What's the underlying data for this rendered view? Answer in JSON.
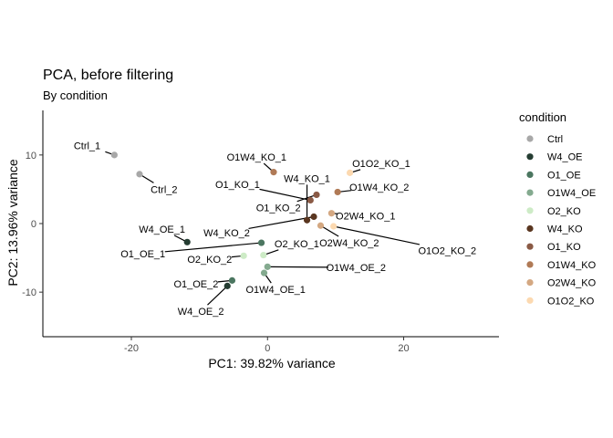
{
  "chart_data": {
    "type": "scatter",
    "title": "PCA, before filtering",
    "subtitle": "By condition",
    "xlabel": "PC1: 39.82% variance",
    "ylabel": "PC2: 13.96% variance",
    "xlim": [
      -33,
      34
    ],
    "ylim": [
      -16.5,
      16.5
    ],
    "xticks": [
      -20,
      0,
      20
    ],
    "yticks": [
      -10,
      0,
      10
    ],
    "tick_labels": {
      "x": [
        "-20",
        "0",
        "20"
      ],
      "y": [
        "-10",
        "0",
        "10"
      ]
    },
    "grid": false,
    "legend": {
      "title": "condition",
      "position": "right",
      "entries": [
        {
          "label": "Ctrl",
          "color": "#A8A8A8"
        },
        {
          "label": "W4_OE",
          "color": "#253D32"
        },
        {
          "label": "O1_OE",
          "color": "#4B7660"
        },
        {
          "label": "O1W4_OE",
          "color": "#84AA8F"
        },
        {
          "label": "O2_KO",
          "color": "#CDEBC6"
        },
        {
          "label": "W4_KO",
          "color": "#5A3620"
        },
        {
          "label": "O1_KO",
          "color": "#8A5A45"
        },
        {
          "label": "O1W4_KO",
          "color": "#B07A56"
        },
        {
          "label": "O2W4_KO",
          "color": "#D4A882"
        },
        {
          "label": "O1O2_KO",
          "color": "#FCD9B0"
        }
      ]
    },
    "points": [
      {
        "label": "Ctrl_1",
        "condition": "Ctrl",
        "x": -22.5,
        "y": 10.0,
        "lx": -26.5,
        "ly": 11.4
      },
      {
        "label": "Ctrl_2",
        "condition": "Ctrl",
        "x": -18.8,
        "y": 7.2,
        "lx": -15.2,
        "ly": 5.0
      },
      {
        "label": "W4_OE_1",
        "condition": "W4_OE",
        "x": -11.8,
        "y": -2.7,
        "lx": -15.5,
        "ly": -0.8
      },
      {
        "label": "W4_OE_2",
        "condition": "W4_OE",
        "x": -5.9,
        "y": -9.1,
        "lx": -9.8,
        "ly": -12.8
      },
      {
        "label": "O1_OE_1",
        "condition": "O1_OE",
        "x": -0.9,
        "y": -2.8,
        "lx": -18.3,
        "ly": -4.4
      },
      {
        "label": "O1_OE_2",
        "condition": "O1_OE",
        "x": -5.2,
        "y": -8.3,
        "lx": -10.5,
        "ly": -8.8
      },
      {
        "label": "O1W4_OE_1",
        "condition": "O1W4_OE",
        "x": -0.5,
        "y": -7.2,
        "lx": 1.2,
        "ly": -9.6
      },
      {
        "label": "O1W4_OE_2",
        "condition": "O1W4_OE",
        "x": 0.0,
        "y": -6.3,
        "lx": 13.0,
        "ly": -6.4
      },
      {
        "label": "O2_KO_1",
        "condition": "O2_KO",
        "x": -0.6,
        "y": -4.6,
        "lx": 4.3,
        "ly": -2.9
      },
      {
        "label": "O2_KO_2",
        "condition": "O2_KO",
        "x": -3.5,
        "y": -4.7,
        "lx": -8.5,
        "ly": -5.2
      },
      {
        "label": "W4_KO_1",
        "condition": "W4_KO",
        "x": 5.8,
        "y": 0.5,
        "lx": 5.8,
        "ly": 6.6
      },
      {
        "label": "W4_KO_2",
        "condition": "W4_KO",
        "x": 6.8,
        "y": 1.0,
        "lx": -6.0,
        "ly": -1.3
      },
      {
        "label": "O1_KO_1",
        "condition": "O1_KO",
        "x": 6.3,
        "y": 3.4,
        "lx": -4.4,
        "ly": 5.7
      },
      {
        "label": "O1_KO_2",
        "condition": "O1_KO",
        "x": 7.2,
        "y": 4.2,
        "lx": 1.6,
        "ly": 2.3
      },
      {
        "label": "O1W4_KO_1",
        "condition": "O1W4_KO",
        "x": 0.9,
        "y": 7.5,
        "lx": -1.6,
        "ly": 9.7
      },
      {
        "label": "O1W4_KO_2",
        "condition": "O1W4_KO",
        "x": 10.3,
        "y": 4.6,
        "lx": 16.4,
        "ly": 5.3
      },
      {
        "label": "O2W4_KO_1",
        "condition": "O2W4_KO",
        "x": 9.4,
        "y": 1.5,
        "lx": 14.4,
        "ly": 1.1
      },
      {
        "label": "O2W4_KO_2",
        "condition": "O2W4_KO",
        "x": 7.8,
        "y": -0.3,
        "lx": 12.0,
        "ly": -2.8
      },
      {
        "label": "O1O2_KO_1",
        "condition": "O1O2_KO",
        "x": 12.1,
        "y": 7.4,
        "lx": 16.7,
        "ly": 8.8
      },
      {
        "label": "O1O2_KO_2",
        "condition": "O1O2_KO",
        "x": 9.7,
        "y": -0.4,
        "lx": 26.4,
        "ly": -3.9
      }
    ]
  }
}
